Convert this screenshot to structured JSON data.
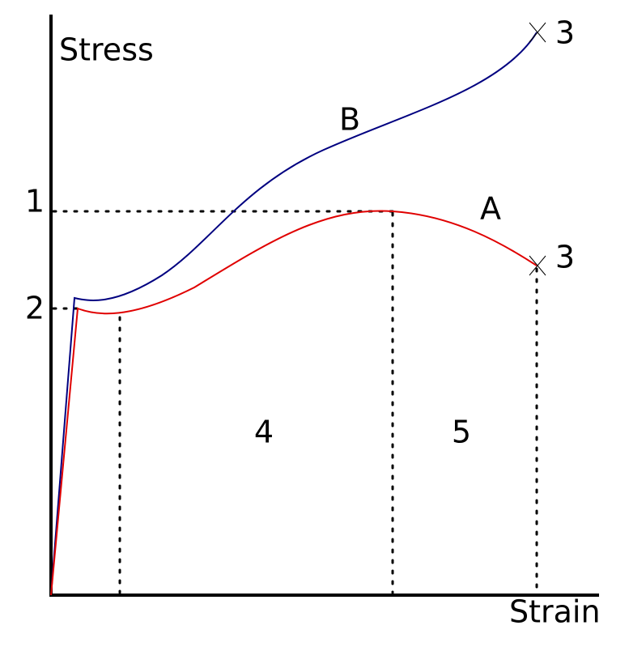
{
  "axes": {
    "y_label": "Stress",
    "x_label": "Strain"
  },
  "curves": [
    {
      "label": "B"
    },
    {
      "label": "A"
    }
  ],
  "points": [
    {
      "label": "1"
    },
    {
      "label": "2"
    },
    {
      "label": "3"
    },
    {
      "label": "3"
    }
  ],
  "regions": [
    {
      "label": "4"
    },
    {
      "label": "5"
    }
  ]
}
